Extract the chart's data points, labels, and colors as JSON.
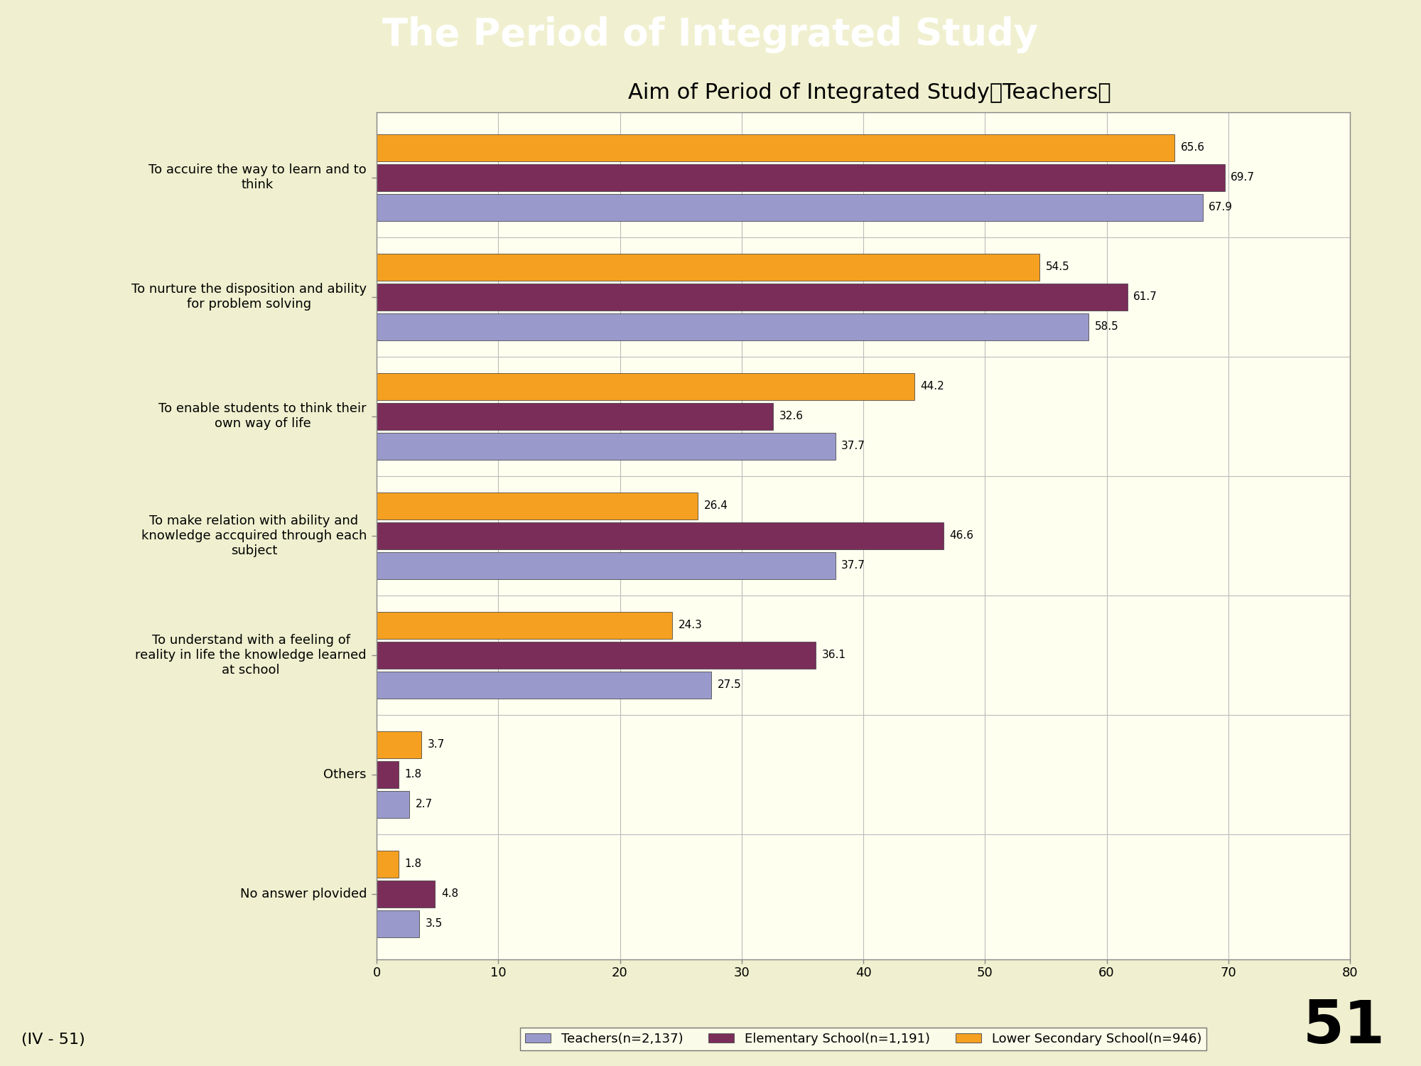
{
  "title_main": "The Period of Integrated Study",
  "title_main_bg": "#F07000",
  "title_main_color": "#FFFFFF",
  "subtitle": "Aim of Period of Integrated Study（Teachers）",
  "bg_color": "#FFFFF0",
  "chart_bg": "#FFFFF0",
  "outer_bg": "#F0F0D0",
  "categories": [
    "To accuire the way to learn and to\nthink",
    "To nurture the disposition and ability\nfor problem solving",
    "To enable students to think their\nown way of life",
    "To make relation with ability and\nknowledge accquired through each\nsubject",
    "To understand with a feeling of\nreality in life the knowledge learned\nat school",
    "Others",
    "No answer plovided"
  ],
  "series": [
    {
      "name": "Teachers(n=2,137)",
      "color": "#9999CC",
      "values": [
        67.9,
        58.5,
        37.7,
        37.7,
        27.5,
        2.7,
        3.5
      ]
    },
    {
      "name": "Elementary School(n=1,191)",
      "color": "#7B2D5A",
      "values": [
        69.7,
        61.7,
        32.6,
        46.6,
        36.1,
        1.8,
        4.8
      ]
    },
    {
      "name": "Lower Secondary School(n=946)",
      "color": "#F5A020",
      "values": [
        65.6,
        54.5,
        44.2,
        26.4,
        24.3,
        3.7,
        1.8
      ]
    }
  ],
  "xlim": [
    0,
    80
  ],
  "xticks": [
    0,
    10,
    20,
    30,
    40,
    50,
    60,
    70,
    80
  ],
  "bar_height": 0.25,
  "footnote": "(IV - 51)",
  "page_number": "51",
  "grid_color": "#BBBBBB",
  "value_fontsize": 11,
  "label_fontsize": 13,
  "tick_fontsize": 13
}
